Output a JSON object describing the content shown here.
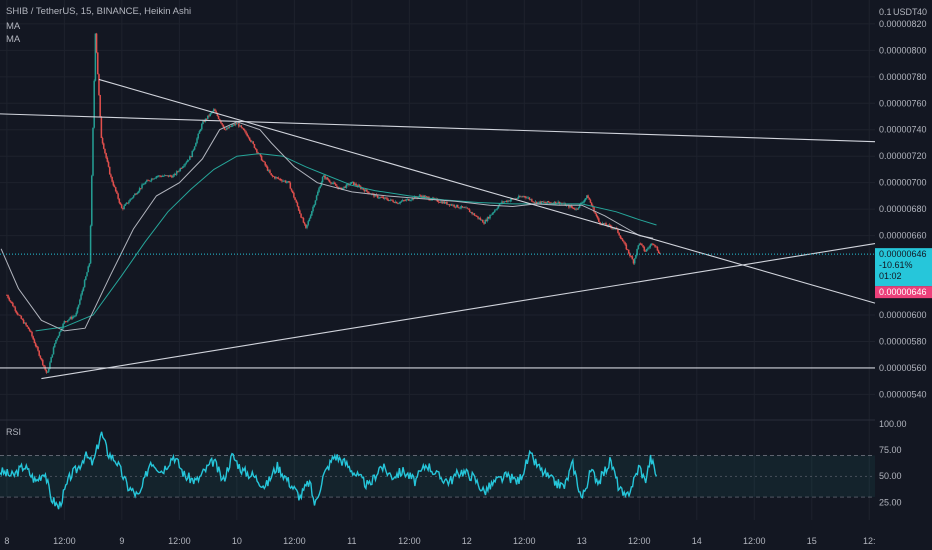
{
  "header": {
    "title": "SHIB / TetherUS, 15, BINANCE, Heikin Ashi",
    "indicators": [
      "MA",
      "MA"
    ],
    "currency": "USDT",
    "scale_mode": "0.1",
    "price_scale_extra": "40"
  },
  "rsi_panel": {
    "label": "RSI"
  },
  "price_tag": {
    "value": "0.00000646",
    "change": "-10.61%",
    "countdown": "01:02",
    "alt_value": "0.00000646"
  },
  "colors": {
    "background": "#131722",
    "up": "#26a69a",
    "down": "#ef5350",
    "ma_fast": "#b2b5be",
    "ma_slow": "#26a69a",
    "rsi": "#26c6da",
    "tag_cyan": "#26c6da",
    "tag_pink": "#ec407a"
  },
  "chart_data": [
    {
      "type": "candlestick",
      "style": "Heikin Ashi",
      "symbol": "SHIB / TetherUS",
      "interval": "15",
      "exchange": "BINANCE",
      "x_ticks": [
        "8",
        "12:00",
        "9",
        "12:00",
        "10",
        "12:00",
        "11",
        "12:00",
        "12",
        "12:00",
        "13",
        "12:00",
        "14",
        "12:00",
        "15",
        "12:"
      ],
      "x_tick_days": [
        0,
        0.5,
        1,
        1.5,
        2,
        2.5,
        3,
        3.5,
        4,
        4.5,
        5,
        5.5,
        6,
        6.5,
        7,
        7.5
      ],
      "xlim_days": [
        -0.06,
        7.55
      ],
      "y_ticks": [
        "0.00000820",
        "0.00000800",
        "0.00000780",
        "0.00000760",
        "0.00000740",
        "0.00000720",
        "0.00000700",
        "0.00000680",
        "0.00000660",
        "0.00000600",
        "0.00000580",
        "0.00000560",
        "0.00000540"
      ],
      "ylim": [
        5.32e-06,
        8.32e-06
      ],
      "price_path_days": [
        0,
        0.1,
        0.2,
        0.35,
        0.42,
        0.5,
        0.6,
        0.72,
        0.77,
        0.82,
        0.9,
        1.0,
        1.1,
        1.2,
        1.3,
        1.45,
        1.6,
        1.7,
        1.8,
        1.9,
        2.0,
        2.1,
        2.2,
        2.3,
        2.45,
        2.6,
        2.75,
        2.9,
        3.0,
        3.2,
        3.4,
        3.6,
        3.8,
        4.0,
        4.15,
        4.3,
        4.5,
        4.6,
        4.8,
        4.95,
        5.05,
        5.15,
        5.3,
        5.45,
        5.5,
        5.55,
        5.62,
        5.68
      ],
      "price_path": [
        6.15e-06,
        6e-06,
        5.88e-06,
        5.55e-06,
        5.8e-06,
        5.95e-06,
        6e-06,
        6.4e-06,
        8.15e-06,
        7.35e-06,
        7.05e-06,
        6.8e-06,
        6.9e-06,
        7e-06,
        7.05e-06,
        7.05e-06,
        7.2e-06,
        7.45e-06,
        7.55e-06,
        7.4e-06,
        7.45e-06,
        7.35e-06,
        7.2e-06,
        7.05e-06,
        7e-06,
        6.65e-06,
        7.05e-06,
        6.95e-06,
        7e-06,
        6.9e-06,
        6.85e-06,
        6.9e-06,
        6.85e-06,
        6.8e-06,
        6.7e-06,
        6.85e-06,
        6.9e-06,
        6.85e-06,
        6.85e-06,
        6.8e-06,
        6.9e-06,
        6.7e-06,
        6.65e-06,
        6.4e-06,
        6.55e-06,
        6.48e-06,
        6.55e-06,
        6.46e-06
      ],
      "ma_fast_days": [
        -0.05,
        0.1,
        0.3,
        0.5,
        0.68,
        0.9,
        1.1,
        1.3,
        1.5,
        1.7,
        1.85,
        2.0,
        2.2,
        2.3,
        2.5,
        2.7,
        3.0,
        3.3,
        3.6,
        3.9,
        4.2,
        4.4,
        4.6,
        4.8,
        5.0,
        5.2,
        5.4,
        5.5,
        5.62
      ],
      "ma_fast": [
        6.5e-06,
        6.2e-06,
        5.96e-06,
        5.88e-06,
        5.9e-06,
        6.3e-06,
        6.65e-06,
        6.9e-06,
        7e-06,
        7.18e-06,
        7.4e-06,
        7.46e-06,
        7.4e-06,
        7.3e-06,
        7.12e-06,
        7e-06,
        6.93e-06,
        6.9e-06,
        6.88e-06,
        6.86e-06,
        6.83e-06,
        6.82e-06,
        6.84e-06,
        6.83e-06,
        6.83e-06,
        6.75e-06,
        6.65e-06,
        6.6e-06,
        6.58e-06
      ],
      "ma_slow_days": [
        0.25,
        0.5,
        0.75,
        1.0,
        1.2,
        1.4,
        1.6,
        1.8,
        2.0,
        2.2,
        2.4,
        2.6,
        2.8,
        3.0,
        3.2,
        3.5,
        3.8,
        4.1,
        4.4,
        4.7,
        5.0,
        5.3,
        5.5,
        5.65
      ],
      "ma_slow": [
        5.88e-06,
        5.91e-06,
        6e-06,
        6.3e-06,
        6.55e-06,
        6.78e-06,
        6.95e-06,
        7.1e-06,
        7.2e-06,
        7.22e-06,
        7.2e-06,
        7.12e-06,
        7.05e-06,
        6.98e-06,
        6.94e-06,
        6.9e-06,
        6.87e-06,
        6.85e-06,
        6.84e-06,
        6.84e-06,
        6.84e-06,
        6.78e-06,
        6.72e-06,
        6.68e-06
      ],
      "drawn_lines": [
        {
          "from_day": -0.06,
          "from_price": 7.52e-06,
          "to_day": 7.55,
          "to_price": 7.31e-06
        },
        {
          "from_day": 0.8,
          "from_price": 7.78e-06,
          "to_day": 7.55,
          "to_price": 6.09e-06
        },
        {
          "from_day": 0.3,
          "from_price": 5.52e-06,
          "to_day": 7.55,
          "to_price": 6.54e-06
        },
        {
          "from_day": -0.06,
          "from_price": 5.6e-06,
          "to_day": 7.55,
          "to_price": 5.6e-06
        }
      ],
      "last_price": 6.46e-06
    },
    {
      "type": "line",
      "name": "RSI",
      "y_ticks": [
        "100.00",
        "75.00",
        "50.00",
        "25.00"
      ],
      "ylim": [
        8,
        102
      ],
      "bands": [
        30,
        70
      ],
      "mid": 50,
      "x_days": [
        -0.06,
        0.05,
        0.15,
        0.25,
        0.33,
        0.38,
        0.45,
        0.55,
        0.62,
        0.68,
        0.75,
        0.82,
        0.88,
        0.95,
        1.05,
        1.15,
        1.25,
        1.35,
        1.45,
        1.55,
        1.65,
        1.72,
        1.8,
        1.88,
        1.96,
        2.05,
        2.15,
        2.25,
        2.35,
        2.45,
        2.55,
        2.63,
        2.68,
        2.75,
        2.85,
        2.95,
        3.05,
        3.15,
        3.25,
        3.35,
        3.45,
        3.55,
        3.65,
        3.75,
        3.85,
        3.95,
        4.05,
        4.15,
        4.25,
        4.35,
        4.45,
        4.55,
        4.65,
        4.75,
        4.85,
        4.92,
        5.0,
        5.08,
        5.15,
        5.25,
        5.32,
        5.38,
        5.45,
        5.5,
        5.55,
        5.6,
        5.65
      ],
      "values": [
        55,
        50,
        60,
        45,
        55,
        30,
        20,
        50,
        58,
        70,
        62,
        92,
        72,
        65,
        40,
        30,
        65,
        55,
        70,
        50,
        45,
        55,
        65,
        45,
        70,
        55,
        50,
        40,
        60,
        45,
        30,
        45,
        22,
        50,
        70,
        62,
        50,
        40,
        60,
        50,
        55,
        45,
        62,
        50,
        45,
        55,
        50,
        35,
        45,
        50,
        45,
        70,
        55,
        45,
        40,
        62,
        28,
        55,
        45,
        65,
        40,
        28,
        45,
        60,
        45,
        68,
        50
      ]
    }
  ]
}
